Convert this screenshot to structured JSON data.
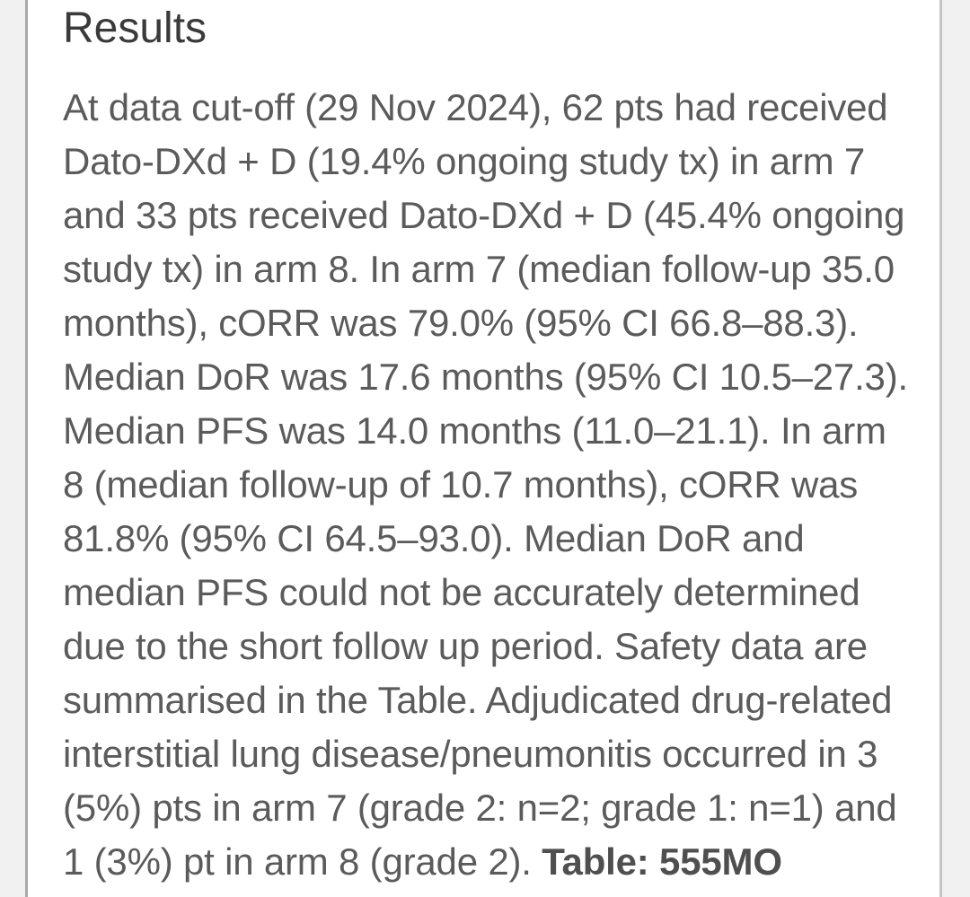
{
  "colors": {
    "page_background": "#f1f1f1",
    "card_background": "#ffffff",
    "card_border_left": "#a9a9a9",
    "card_border_right": "#c5c5c5",
    "heading_text": "#3a3a3a",
    "body_text": "#5b5b5b"
  },
  "section": {
    "heading": "Results"
  },
  "paragraph": {
    "lines": [
      "At data cut-off (29 Nov 2024), 62 pts had received",
      "Dato-DXd + D (19.4% ongoing study tx) in arm 7",
      "and 33 pts received Dato-DXd + D (45.4% ongoing",
      "study tx) in arm 8. In arm 7 (median follow-up 35.0",
      "months), cORR was 79.0% (95% CI 66.8–88.3).",
      "Median DoR was 17.6 months (95% CI 10.5–27.3).",
      "Median PFS was 14.0 months (11.0–21.1). In arm",
      "8 (median follow-up of 10.7 months), cORR was",
      "81.8% (95% CI 64.5–93.0). Median DoR and",
      "median PFS could not be accurately determined",
      "due to the short follow up period. Safety data are",
      "summarised in the Table. Adjudicated drug-related",
      "interstitial lung disease/pneumonitis occurred in 3",
      "(5%) pts in arm 7 (grade 2: n=2; grade 1: n=1) and"
    ],
    "last_line": {
      "regular": "1 (3%) pt in arm 8 (grade 2). ",
      "bold_label": "Table: 555MO"
    }
  }
}
